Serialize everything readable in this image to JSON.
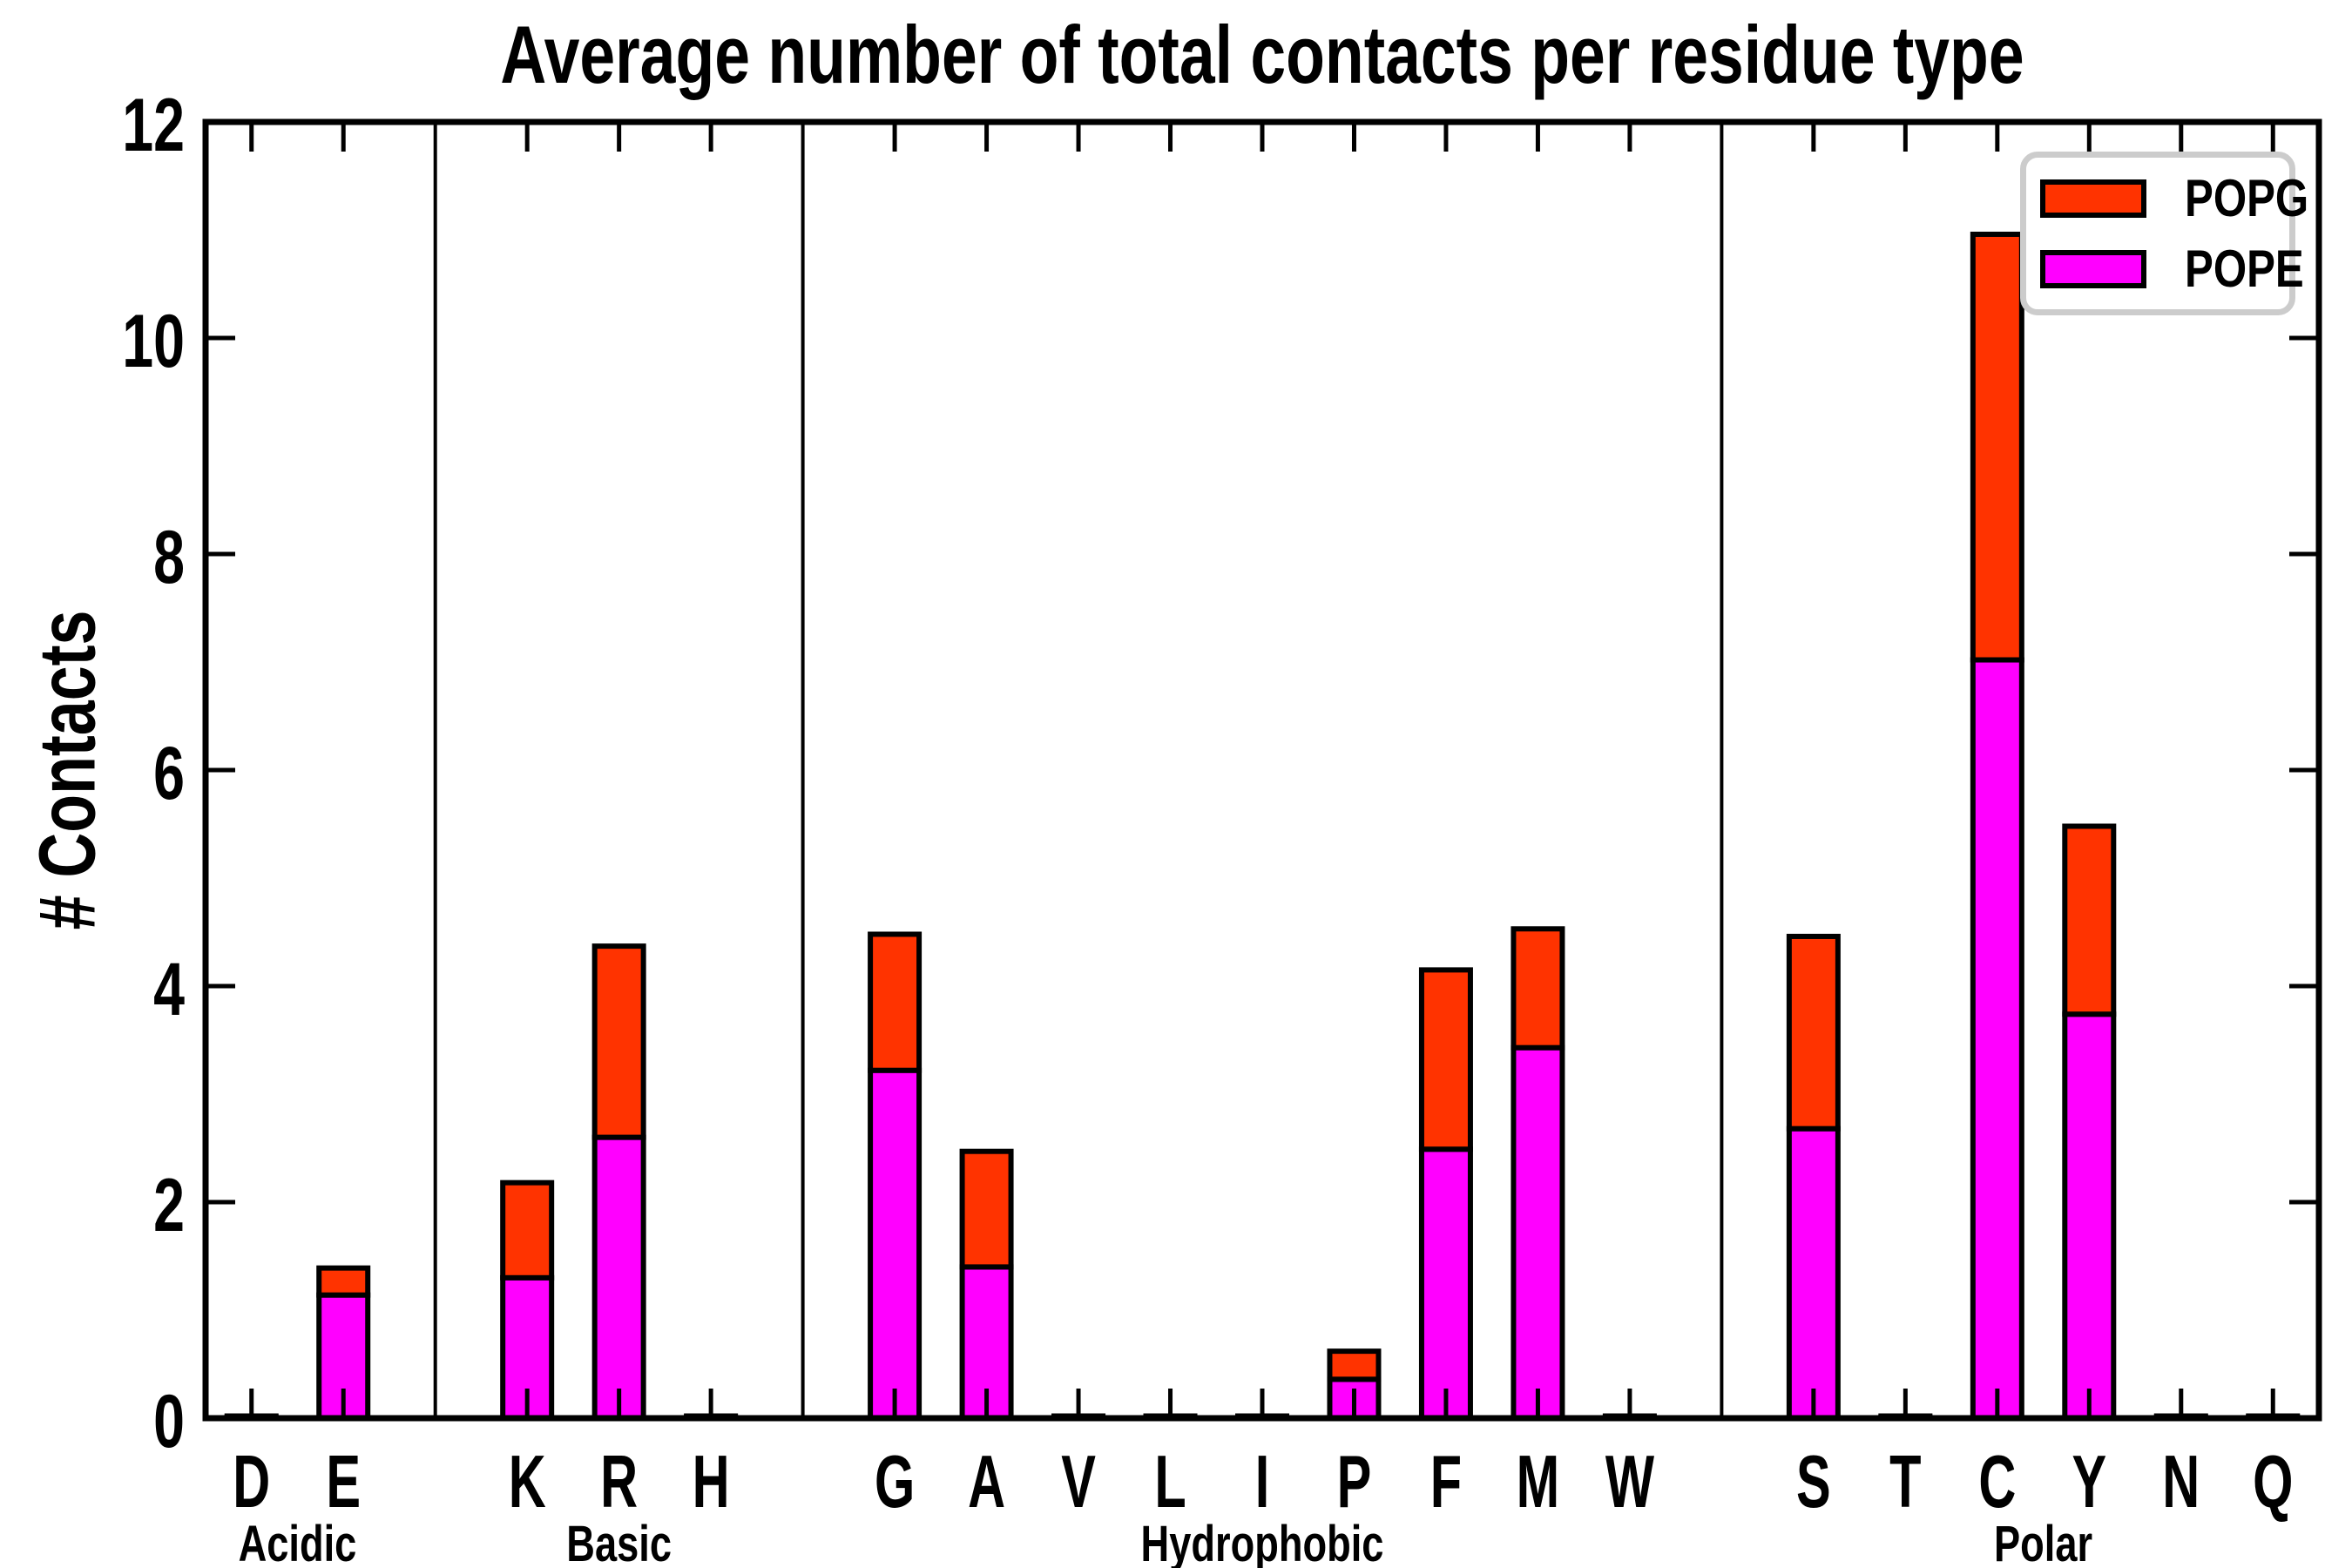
{
  "figure": {
    "background": "#ffffff",
    "frame_color": "#000000"
  },
  "legend": {
    "items": [
      {
        "label": "POPG"
      },
      {
        "label": "POPE"
      }
    ],
    "border_color": "#cccccc"
  },
  "chart_data": {
    "type": "bar",
    "stacked": true,
    "title": "Average number of total contacts per residue type",
    "xlabel": "",
    "ylabel": "# Contacts",
    "ylim": [
      0,
      12
    ],
    "yticks": [
      0,
      2,
      4,
      6,
      8,
      10,
      12
    ],
    "grid": false,
    "legend_position": "upper right",
    "categories": [
      "D",
      "E",
      "K",
      "R",
      "H",
      "G",
      "A",
      "V",
      "L",
      "I",
      "P",
      "F",
      "M",
      "W",
      "S",
      "T",
      "C",
      "Y",
      "N",
      "Q"
    ],
    "groups": [
      {
        "name": "Acidic",
        "residues": [
          "D",
          "E"
        ]
      },
      {
        "name": "Basic",
        "residues": [
          "K",
          "R",
          "H"
        ]
      },
      {
        "name": "Hydrophobic",
        "residues": [
          "G",
          "A",
          "V",
          "L",
          "I",
          "P",
          "F",
          "M",
          "W"
        ]
      },
      {
        "name": "Polar",
        "residues": [
          "S",
          "T",
          "C",
          "Y",
          "N",
          "Q"
        ]
      }
    ],
    "series": [
      {
        "name": "POPE",
        "color": "#ff00ff",
        "values": [
          0.01,
          1.14,
          1.3,
          2.6,
          0.01,
          3.22,
          1.4,
          0.01,
          0.01,
          0.01,
          0.36,
          2.49,
          3.43,
          0.01,
          2.68,
          0.01,
          7.02,
          3.74,
          0.01,
          0.01
        ]
      },
      {
        "name": "POPG",
        "color": "#ff3300",
        "values": [
          0.01,
          0.25,
          0.88,
          1.77,
          0.01,
          1.26,
          1.07,
          0.01,
          0.01,
          0.01,
          0.26,
          1.66,
          1.1,
          0.01,
          1.78,
          0.01,
          3.94,
          1.74,
          0.01,
          0.01
        ]
      }
    ],
    "totals": [
      0.02,
      1.39,
      2.18,
      4.37,
      0.02,
      4.48,
      2.47,
      0.02,
      0.02,
      0.02,
      0.62,
      4.15,
      4.53,
      0.02,
      4.46,
      0.02,
      10.96,
      5.48,
      0.02,
      0.02
    ]
  }
}
